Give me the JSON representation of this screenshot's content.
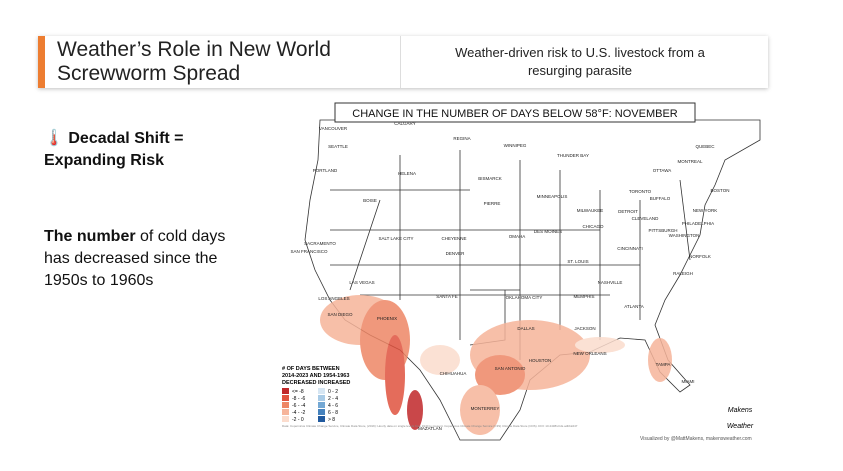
{
  "header": {
    "title_line1": "Weather’s Role in New World",
    "title_line2": "Screwworm Spread",
    "subtitle_line1": "Weather-driven risk to U.S. livestock from a",
    "subtitle_line2": "resurging parasite"
  },
  "left": {
    "icon": "🌡️",
    "heading_line1": "Decadal Shift =",
    "heading_line2": "Expanding Risk",
    "body_bold": "The number",
    "body_line1_rest": " of cold days",
    "body_line2": "has decreased since the",
    "body_line3": "1950s to 1960s"
  },
  "map": {
    "title": "CHANGE IN THE NUMBER OF DAYS BELOW 58°F: NOVEMBER",
    "cities": [
      "CALGARY",
      "VANCOUVER",
      "SEATTLE",
      "REGINA",
      "WINNIPEG",
      "THUNDER BAY",
      "QUEBEC",
      "MONTREAL",
      "OTTAWA",
      "TORONTO",
      "PORTLAND",
      "HELENA",
      "BISMARCK",
      "MINNEAPOLIS",
      "BOISE",
      "PIERRE",
      "MILWAUKEE",
      "DETROIT",
      "CLEVELAND",
      "BUFFALO",
      "BOSTON",
      "NEW YORK",
      "PHILADELPHIA",
      "WASHINGTON",
      "PITTSBURGH",
      "CHICAGO",
      "DES MOINES",
      "OMAHA",
      "CHEYENNE",
      "SALT LAKE CITY",
      "SACRAMENTO",
      "SAN FRANCISCO",
      "DENVER",
      "ST. LOUIS",
      "CINCINNATI",
      "NORFOLK",
      "RALEIGH",
      "NASHVILLE",
      "LAS VEGAS",
      "LOS ANGELES",
      "SAN DIEGO",
      "PHOENIX",
      "SANTA FE",
      "OKLAHOMA CITY",
      "MEMPHIS",
      "ATLANTA",
      "DALLAS",
      "JACKSON",
      "HOUSTON",
      "NEW ORLEANS",
      "SAN ANTONIO",
      "TAMPA",
      "MIAMI",
      "CHIHUAHUA",
      "MONTERREY",
      "MAZATLAN"
    ],
    "legend": {
      "title_line1": "# OF DAYS BETWEEN",
      "title_line2": "2014-2023 AND 1954-1963",
      "decreased": "DECREASED",
      "increased": "INCREASED",
      "decreased_items": [
        {
          "label": "<= -8",
          "color": "#c0282a"
        },
        {
          "label": "-8 - -6",
          "color": "#e0533f"
        },
        {
          "label": "-6 - -4",
          "color": "#ee8766"
        },
        {
          "label": "-4 - -2",
          "color": "#f6b49a"
        },
        {
          "label": "-2 - 0",
          "color": "#fbdccd"
        }
      ],
      "increased_items": [
        {
          "label": "0 - 2",
          "color": "#d6e6f3"
        },
        {
          "label": "2 - 4",
          "color": "#a9cbe6"
        },
        {
          "label": "4 - 6",
          "color": "#74a8d4"
        },
        {
          "label": "6 - 8",
          "color": "#4582bd"
        },
        {
          "label": "> 8",
          "color": "#215a9e"
        }
      ]
    },
    "source": "Data: Copernicus Climate Change Service, Climate Data Store, (2019): Hourly data on single levels from 1940 to present. Copernicus Climate Change Service (C3S) Climate Data Store (CDS). DOI: 10.24381/cds.adbb2d47",
    "credit": "Visualized by @MattMakens, makensweather.com",
    "logo_line1": "Makens",
    "logo_line2": "Weather"
  }
}
